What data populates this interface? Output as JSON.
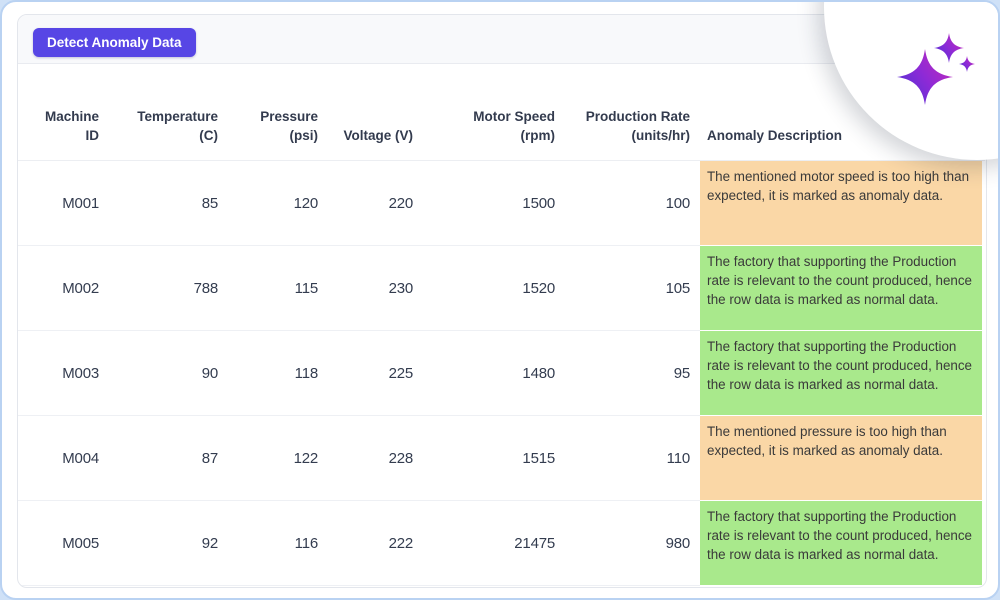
{
  "toolbar": {
    "detect_button_label": "Detect Anomaly Data"
  },
  "colors": {
    "accent": "#5746e5",
    "anomaly_bg": "#fad7a6",
    "normal_bg": "#a9e98c",
    "page_border": "#b9d2f2",
    "header_text": "#333b4e",
    "sparkle_gradient_start": "#4d33d4",
    "sparkle_gradient_mid": "#8e2ad6",
    "sparkle_gradient_end": "#c62bb8"
  },
  "icons": {
    "corner_badge": "ai-sparkle-icon"
  },
  "table": {
    "columns": [
      {
        "id": "machine_id",
        "lines": [
          "Machine",
          "ID"
        ],
        "align": "right"
      },
      {
        "id": "temperature",
        "lines": [
          "Temperature",
          "(C)"
        ],
        "align": "right"
      },
      {
        "id": "pressure",
        "lines": [
          "Pressure",
          "(psi)"
        ],
        "align": "right"
      },
      {
        "id": "voltage",
        "lines": [
          "Voltage (V)"
        ],
        "align": "right"
      },
      {
        "id": "motor_speed",
        "lines": [
          "Motor Speed",
          "(rpm)"
        ],
        "align": "right"
      },
      {
        "id": "production_rate",
        "lines": [
          "Production Rate",
          "(units/hr)"
        ],
        "align": "right"
      },
      {
        "id": "anomaly_description",
        "lines": [
          "Anomaly Description"
        ],
        "align": "left"
      }
    ],
    "rows": [
      {
        "machine_id": "M001",
        "temperature": "85",
        "pressure": "120",
        "voltage": "220",
        "motor_speed": "1500",
        "production_rate": "100",
        "anomaly_description": "The mentioned motor speed is too high than expected, it is marked as anomaly data.",
        "status": "anomaly"
      },
      {
        "machine_id": "M002",
        "temperature": "788",
        "pressure": "115",
        "voltage": "230",
        "motor_speed": "1520",
        "production_rate": "105",
        "anomaly_description": "The factory that supporting the Production rate is relevant to the count produced, hence the row data is marked as normal data.",
        "status": "normal"
      },
      {
        "machine_id": "M003",
        "temperature": "90",
        "pressure": "118",
        "voltage": "225",
        "motor_speed": "1480",
        "production_rate": "95",
        "anomaly_description": "The factory that supporting the Production rate is relevant to the count produced, hence the row data is marked as normal data.",
        "status": "normal"
      },
      {
        "machine_id": "M004",
        "temperature": "87",
        "pressure": "122",
        "voltage": "228",
        "motor_speed": "1515",
        "production_rate": "110",
        "anomaly_description": "The mentioned pressure is too high than expected, it is marked as anomaly data.",
        "status": "anomaly"
      },
      {
        "machine_id": "M005",
        "temperature": "92",
        "pressure": "116",
        "voltage": "222",
        "motor_speed": "21475",
        "production_rate": "980",
        "anomaly_description": "The factory that supporting the Production rate is relevant to the count produced, hence the row data is marked as normal data.",
        "status": "normal"
      }
    ]
  }
}
